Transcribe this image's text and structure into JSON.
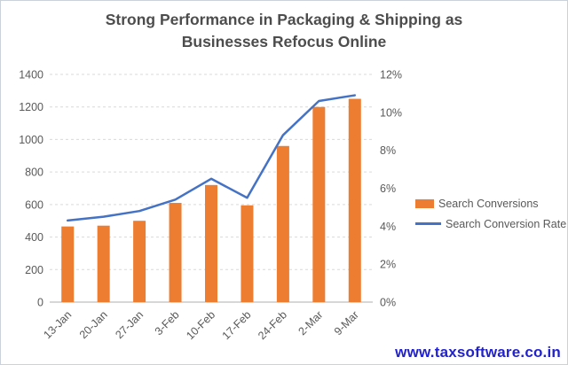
{
  "title": {
    "line1": "Strong Performance in Packaging & Shipping as",
    "line2": "Businesses Refocus Online"
  },
  "watermark": "www.taxsoftware.co.in",
  "legend": [
    {
      "label": "Search Conversions",
      "swatch": "bar",
      "color": "#ED7D31"
    },
    {
      "label": "Search Conversion Rate",
      "swatch": "line",
      "color": "#4472C4"
    }
  ],
  "chart_data": {
    "type": "combo-bar-line",
    "title": "Strong Performance in Packaging & Shipping as Businesses Refocus Online",
    "categories": [
      "13-Jan",
      "20-Jan",
      "27-Jan",
      "3-Feb",
      "10-Feb",
      "17-Feb",
      "24-Feb",
      "2-Mar",
      "9-Mar"
    ],
    "series": [
      {
        "name": "Search Conversions",
        "type": "bar",
        "axis": "left",
        "color": "#ED7D31",
        "values": [
          465,
          470,
          500,
          610,
          720,
          595,
          960,
          1200,
          1250
        ]
      },
      {
        "name": "Search Conversion Rate",
        "type": "line",
        "axis": "right",
        "color": "#4472C4",
        "unit": "%",
        "values": [
          4.3,
          4.5,
          4.8,
          5.4,
          6.5,
          5.5,
          8.8,
          10.6,
          10.9
        ]
      }
    ],
    "left_axis": {
      "min": 0,
      "max": 1400,
      "step": 200,
      "tick_labels": [
        "0",
        "200",
        "400",
        "600",
        "800",
        "1000",
        "1200",
        "1400"
      ]
    },
    "right_axis": {
      "min": 0,
      "max": 12,
      "step": 2,
      "tick_labels": [
        "0%",
        "2%",
        "4%",
        "6%",
        "8%",
        "10%",
        "12%"
      ]
    },
    "grid": {
      "horizontal": true,
      "style": "dashed",
      "color": "#D9D9D9"
    },
    "legend_position": "right"
  },
  "colors": {
    "bar": "#ED7D31",
    "line": "#4472C4",
    "title_text": "#4D4D4D",
    "axis_text": "#595959",
    "gridline": "#D9D9D9",
    "axis_line": "#BFBFBF",
    "watermark": "#2222CC",
    "background": "#FFFFFF"
  }
}
